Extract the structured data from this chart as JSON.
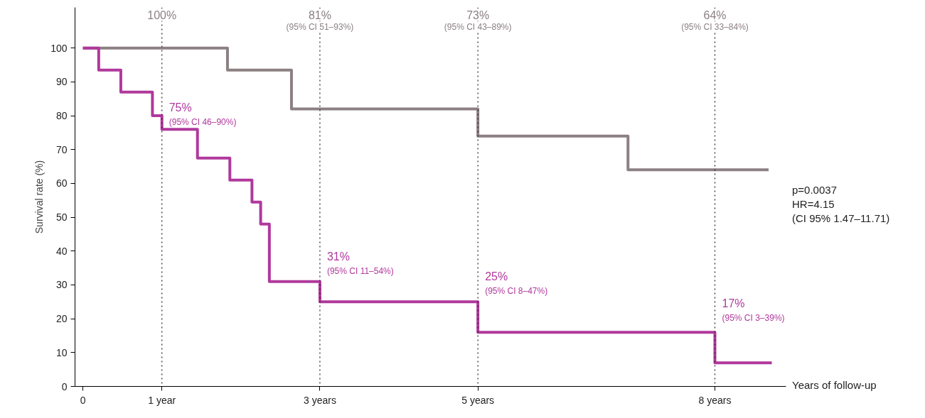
{
  "chart_data": {
    "type": "step",
    "xlabel": "Years of follow-up",
    "ylabel": "Survival rate (%)",
    "xlim": [
      -0.1,
      8.9
    ],
    "ylim": [
      0,
      112
    ],
    "xticks": [
      0,
      {
        "value": 1,
        "label": "1 year"
      },
      {
        "value": 3,
        "label": "3 years"
      },
      {
        "value": 5,
        "label": "5 years"
      },
      {
        "value": 8,
        "label": "8 years"
      }
    ],
    "yticks": [
      0,
      10,
      20,
      30,
      40,
      50,
      60,
      70,
      80,
      90,
      100
    ],
    "grid": false,
    "line_style": "solid",
    "marker": "none",
    "series": [
      {
        "color": "#8c8083",
        "x": [
          0,
          1.83,
          2.64,
          5.0,
          6.9,
          8.68
        ],
        "values": [
          100,
          93.5,
          82,
          74,
          64,
          64
        ]
      },
      {
        "color": "#b0399c",
        "x": [
          0,
          0.2,
          0.48,
          0.88,
          1.0,
          1.45,
          1.86,
          2.14,
          2.25,
          2.36,
          3.0,
          5.0,
          8.0,
          8.72
        ],
        "values": [
          100,
          93.5,
          87,
          80,
          76,
          67.5,
          61,
          54.5,
          48,
          31,
          25,
          16,
          7,
          7
        ]
      }
    ],
    "ref_lines": [
      {
        "axis": "x",
        "value": 1,
        "label": "100%",
        "color": "#222222",
        "line_style": "dotted"
      },
      {
        "axis": "x",
        "value": 3,
        "label": "81%\n(95% CI 51–93%)",
        "color": "#222222",
        "line_style": "dotted"
      },
      {
        "axis": "x",
        "value": 5,
        "label": "73%\n(95% CI 43–89%)",
        "color": "#222222",
        "line_style": "dotted"
      },
      {
        "axis": "x",
        "value": 8,
        "label": "64%\n(95% CI 33–84%)",
        "color": "#222222",
        "line_style": "dotted"
      }
    ],
    "annotations": [
      {
        "text": "75%\n(95% CI 46–90%)",
        "x": 1,
        "y": 75
      },
      {
        "text": "31%\n(95% CI 11–54%)",
        "x": 3,
        "y": 31
      },
      {
        "text": "25%\n(95% CI 8–47%)",
        "x": 5,
        "y": 25
      },
      {
        "text": "17%\n(95% CI 3–39%)",
        "x": 8,
        "y": 17
      },
      "p=0.0037\nHR=4.15\n(CI 95% 1.47–11.71)"
    ]
  }
}
